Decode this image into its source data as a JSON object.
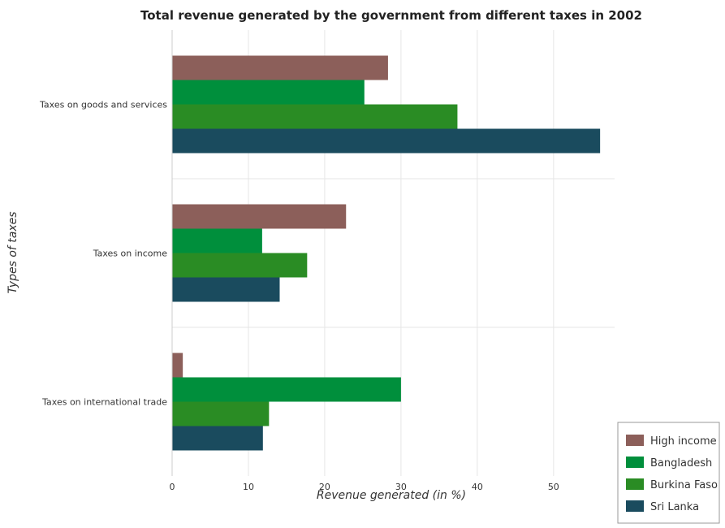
{
  "chart_data": {
    "type": "bar",
    "orientation": "horizontal",
    "title": "Total revenue generated by the government from different taxes in 2002",
    "xlabel": "Revenue generated (in %)",
    "ylabel": "Types of taxes",
    "xlim": [
      0,
      58
    ],
    "xticks": [
      0,
      10,
      20,
      30,
      40,
      50
    ],
    "grid": true,
    "legend_position": "bottom-right",
    "categories": [
      "Taxes on goods and services",
      "Taxes on income",
      "Taxes on international trade"
    ],
    "series": [
      {
        "name": "High income",
        "color": "#8c5f5a",
        "values": [
          28.3,
          22.8,
          1.4
        ]
      },
      {
        "name": "Bangladesh",
        "color": "#008f3c",
        "values": [
          25.2,
          11.8,
          30.0
        ]
      },
      {
        "name": "Burkina Faso",
        "color": "#2a8c24",
        "values": [
          37.4,
          17.7,
          12.7
        ]
      },
      {
        "name": "Sri Lanka",
        "color": "#1a4b5e",
        "values": [
          56.1,
          14.1,
          11.9
        ]
      }
    ]
  }
}
